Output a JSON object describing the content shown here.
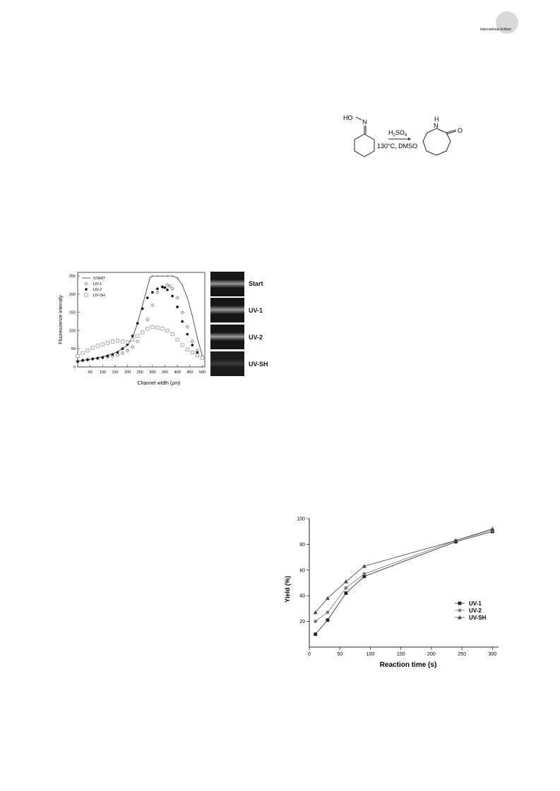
{
  "header": {
    "badge_text": "International Edition"
  },
  "scheme": {
    "reactant_label": "HO",
    "reactant_n": "N",
    "reagent": "H",
    "reagent_sub": "2",
    "reagent_rest": "SO",
    "reagent_sub2": "4",
    "conditions": "130°C, DMSO",
    "product_nh": "N",
    "product_h": "H",
    "product_o": "O"
  },
  "figure1": {
    "panel_labels": [
      "Start",
      "UV-1",
      "UV-2",
      "UV-SH"
    ],
    "chart_data": {
      "type": "scatter",
      "title": "",
      "xlabel": "Channel width (µm)",
      "ylabel": "Fluorescence intensity",
      "xlim": [
        0,
        510
      ],
      "ylim": [
        0,
        260
      ],
      "xticks": [
        50,
        100,
        150,
        200,
        250,
        300,
        350,
        400,
        450,
        500
      ],
      "yticks": [
        0,
        50,
        100,
        150,
        200,
        250
      ],
      "legend": "top-left",
      "series": [
        {
          "name": "START",
          "marker": "line",
          "color": "#333333",
          "x": [
            0,
            20,
            40,
            60,
            80,
            100,
            120,
            140,
            160,
            180,
            200,
            220,
            240,
            260,
            280,
            290,
            300,
            320,
            340,
            360,
            380,
            400,
            420,
            440,
            460,
            480,
            500
          ],
          "y": [
            15,
            18,
            20,
            22,
            25,
            28,
            32,
            36,
            42,
            50,
            60,
            80,
            120,
            170,
            220,
            245,
            250,
            250,
            250,
            250,
            250,
            245,
            225,
            190,
            140,
            80,
            30
          ]
        },
        {
          "name": "UV-1",
          "marker": "open-diamond",
          "color": "#555555",
          "x": [
            0,
            20,
            40,
            60,
            80,
            100,
            120,
            140,
            160,
            180,
            200,
            220,
            240,
            260,
            280,
            300,
            320,
            340,
            360,
            370,
            380,
            400,
            420,
            440,
            460,
            480,
            500
          ],
          "y": [
            15,
            18,
            20,
            22,
            24,
            26,
            28,
            30,
            33,
            38,
            45,
            55,
            70,
            95,
            130,
            170,
            205,
            220,
            225,
            222,
            215,
            190,
            150,
            110,
            70,
            45,
            28
          ]
        },
        {
          "name": "UV-2",
          "marker": "filled-circle",
          "color": "#111111",
          "x": [
            0,
            20,
            40,
            60,
            80,
            100,
            120,
            140,
            160,
            180,
            200,
            220,
            240,
            260,
            280,
            300,
            320,
            340,
            350,
            360,
            380,
            400,
            420,
            440,
            460,
            480,
            500
          ],
          "y": [
            15,
            18,
            20,
            22,
            24,
            26,
            30,
            34,
            40,
            50,
            62,
            85,
            120,
            160,
            190,
            205,
            215,
            220,
            218,
            212,
            195,
            165,
            125,
            90,
            60,
            40,
            25
          ]
        },
        {
          "name": "UV-SH",
          "marker": "open-square",
          "color": "#777777",
          "x": [
            0,
            20,
            40,
            60,
            80,
            100,
            120,
            140,
            160,
            180,
            200,
            220,
            240,
            260,
            280,
            300,
            320,
            340,
            360,
            380,
            400,
            420,
            440,
            460,
            480,
            500
          ],
          "y": [
            30,
            38,
            45,
            52,
            58,
            62,
            66,
            70,
            72,
            70,
            68,
            75,
            85,
            95,
            105,
            110,
            108,
            105,
            100,
            90,
            75,
            60,
            48,
            40,
            32,
            25
          ]
        }
      ]
    }
  },
  "figure2": {
    "chart_data": {
      "type": "line",
      "title": "",
      "xlabel": "Reaction time (s)",
      "ylabel": "Yield (%)",
      "xlim": [
        0,
        310
      ],
      "ylim": [
        0,
        100
      ],
      "xticks": [
        0,
        50,
        100,
        150,
        200,
        250,
        300
      ],
      "yticks": [
        20,
        40,
        60,
        80,
        100
      ],
      "legend": "right",
      "x": [
        10,
        30,
        60,
        90,
        240,
        300
      ],
      "series": [
        {
          "name": "UV-1",
          "marker": "square",
          "color": "#222222",
          "values": [
            10,
            21,
            42,
            55,
            82,
            90
          ]
        },
        {
          "name": "UV-2",
          "marker": "circle",
          "color": "#777777",
          "values": [
            20,
            27,
            46,
            57,
            83,
            91
          ]
        },
        {
          "name": "UV-SH",
          "marker": "triangle",
          "color": "#444444",
          "values": [
            27,
            38,
            51,
            63,
            83,
            92
          ]
        }
      ]
    }
  }
}
